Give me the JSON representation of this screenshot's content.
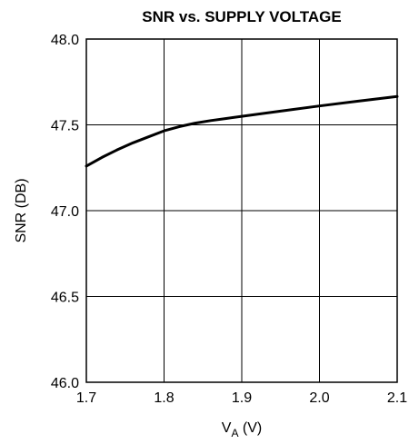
{
  "chart_data": {
    "type": "line",
    "title": "SNR vs. SUPPLY VOLTAGE",
    "ylabel": "SNR (DB)",
    "xlabel": {
      "main": "V",
      "sub": "A",
      "unit": " (V)"
    },
    "xlim": [
      1.7,
      2.1
    ],
    "ylim": [
      46.0,
      48.0
    ],
    "x_ticks": [
      "1.7",
      "1.8",
      "1.9",
      "2.0",
      "2.1"
    ],
    "y_ticks": [
      "48.0",
      "47.5",
      "47.0",
      "46.5",
      "46.0"
    ],
    "grid": true,
    "series": [
      {
        "x": [
          1.7,
          1.72,
          1.74,
          1.76,
          1.78,
          1.8,
          1.82,
          1.84,
          1.86,
          1.88,
          1.9,
          1.95,
          2.0,
          2.05,
          2.1
        ],
        "y": [
          47.26,
          47.31,
          47.355,
          47.395,
          47.43,
          47.465,
          47.49,
          47.51,
          47.525,
          47.537,
          47.55,
          47.58,
          47.61,
          47.638,
          47.665
        ]
      }
    ]
  }
}
